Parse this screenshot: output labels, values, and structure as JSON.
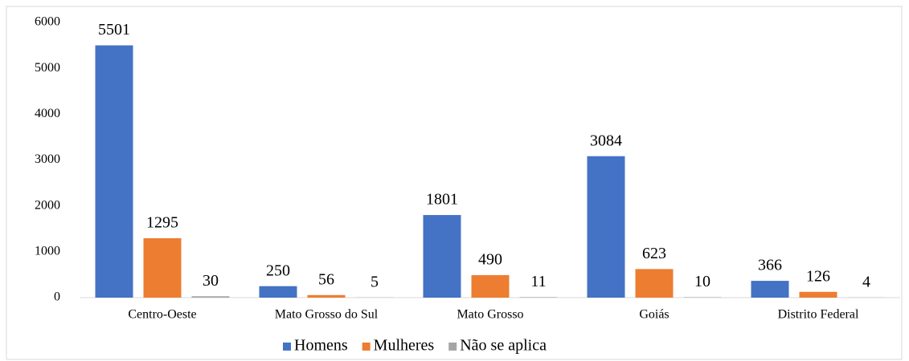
{
  "chart_data": {
    "type": "bar",
    "categories": [
      "Centro-Oeste",
      "Mato Grosso do Sul",
      "Mato Grosso",
      "Goiás",
      "Distrito Federal"
    ],
    "series": [
      {
        "name": "Homens",
        "color": "#4472c4",
        "values": [
          5501,
          250,
          1801,
          3084,
          366
        ]
      },
      {
        "name": "Mulheres",
        "color": "#ed7d31",
        "values": [
          1295,
          56,
          490,
          623,
          126
        ]
      },
      {
        "name": "Não se aplica",
        "color": "#a5a5a5",
        "values": [
          30,
          5,
          11,
          10,
          4
        ]
      }
    ],
    "ylim": [
      0,
      6000
    ],
    "yticks": [
      0,
      1000,
      2000,
      3000,
      4000,
      5000,
      6000
    ],
    "grid": false,
    "legend": "bottom"
  }
}
